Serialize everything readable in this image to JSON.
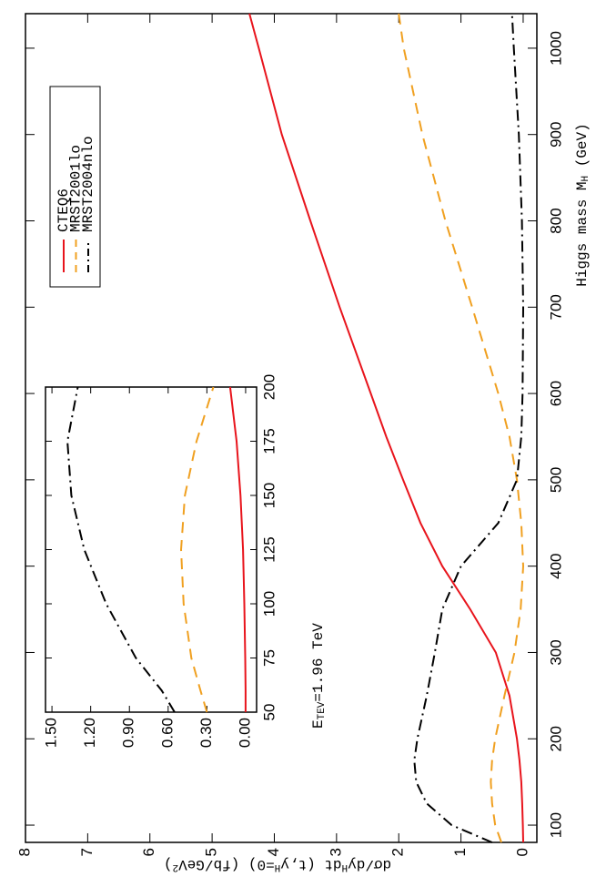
{
  "chart_data": [
    {
      "type": "line",
      "x_label": [
        {
          "text": "Higgs mass M"
        },
        {
          "text": "H",
          "sub": true
        },
        {
          "text": " (GeV)"
        }
      ],
      "y_label": [
        {
          "text": "dσ/dy"
        },
        {
          "text": "H",
          "sup": true
        },
        {
          "text": "dt (t,y"
        },
        {
          "text": "H",
          "sup": true
        },
        {
          "text": "=0) (fb/GeV"
        },
        {
          "text": "2",
          "sup": true
        },
        {
          "text": ")"
        }
      ],
      "annotation": [
        {
          "text": "E"
        },
        {
          "text": "TEV",
          "sub": true
        },
        {
          "text": "=1.96 TeV"
        }
      ],
      "xlim": [
        80,
        1040
      ],
      "xticks": [
        100,
        200,
        300,
        400,
        500,
        600,
        700,
        800,
        900,
        1000
      ],
      "ylim": [
        -0.22,
        8
      ],
      "yticks": [
        0,
        1,
        2,
        3,
        4,
        5,
        6,
        7,
        8
      ],
      "x": [
        80,
        100,
        125,
        150,
        175,
        200,
        250,
        300,
        350,
        400,
        450,
        500,
        550,
        600,
        700,
        800,
        900,
        1000,
        1040
      ],
      "series": [
        {
          "name": "CTEQ6",
          "color": "#e8141c",
          "dash": "none",
          "values": [
            0,
            0.005,
            0.015,
            0.03,
            0.06,
            0.1,
            0.22,
            0.44,
            0.85,
            1.3,
            1.65,
            1.93,
            2.2,
            2.45,
            2.95,
            3.42,
            3.88,
            4.25,
            4.4
          ]
        },
        {
          "name": "MRST2001lo",
          "color": "#f0a020",
          "dash": "12,8",
          "values": [
            0.35,
            0.45,
            0.5,
            0.52,
            0.5,
            0.45,
            0.3,
            0.14,
            0.04,
            0,
            0.03,
            0.1,
            0.22,
            0.4,
            0.82,
            1.25,
            1.62,
            1.92,
            2.0
          ]
        },
        {
          "name": "MRST2004nlo",
          "color": "#000000",
          "dash": "12,5,2,5",
          "values": [
            0.5,
            1.15,
            1.55,
            1.72,
            1.75,
            1.7,
            1.55,
            1.42,
            1.3,
            1.0,
            0.4,
            0.1,
            0.03,
            0.01,
            0,
            0.02,
            0.07,
            0.15,
            0.18
          ]
        }
      ]
    },
    {
      "type": "line",
      "xlim": [
        50,
        200
      ],
      "xticks": [
        50,
        75,
        100,
        125,
        150,
        175,
        200
      ],
      "ylim": [
        -0.085,
        1.55
      ],
      "yticks": [
        {
          "value": 0,
          "label": "0.00"
        },
        {
          "value": 0.3,
          "label": "0.30"
        },
        {
          "value": 0.6,
          "label": "0.60"
        },
        {
          "value": 0.9,
          "label": "0.90"
        },
        {
          "value": 1.2,
          "label": "1.20"
        },
        {
          "value": 1.5,
          "label": "1.50"
        }
      ],
      "x": [
        50,
        60,
        75,
        100,
        125,
        150,
        175,
        200
      ],
      "series": [
        {
          "color": "#e8141c",
          "dash": "none",
          "values": [
            0,
            0,
            0.003,
            0.01,
            0.02,
            0.04,
            0.07,
            0.12
          ]
        },
        {
          "color": "#f0a020",
          "dash": "12,8",
          "values": [
            0.3,
            0.35,
            0.42,
            0.48,
            0.5,
            0.47,
            0.38,
            0.25
          ]
        },
        {
          "color": "#000000",
          "dash": "12,5,2,5",
          "values": [
            0.55,
            0.65,
            0.85,
            1.08,
            1.25,
            1.35,
            1.38,
            1.3
          ]
        }
      ]
    }
  ]
}
